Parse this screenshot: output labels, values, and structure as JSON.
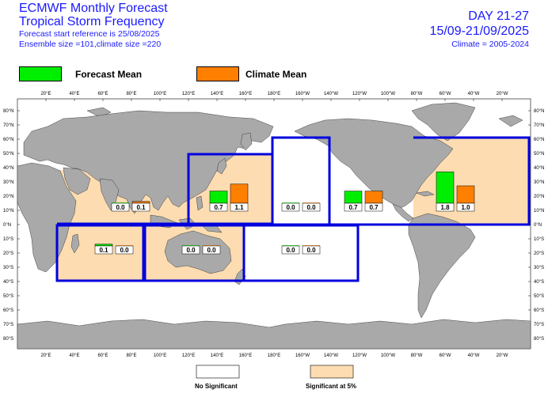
{
  "header": {
    "title1": "ECMWF Monthly Forecast",
    "title2": "Tropical Storm Frequency",
    "forecast_start": "Forecast start reference is 25/08/2025",
    "ensemble": "Ensemble size =101,climate size =220",
    "day_range": "DAY 21-27",
    "date_range": "15/09-21/09/2025",
    "climate_period": "Climate = 2005-2024"
  },
  "legend": {
    "forecast_label": "Forecast Mean",
    "climate_label": "Climate Mean",
    "forecast_color": "#00ee00",
    "climate_color": "#ff7f00"
  },
  "bottom_legend": {
    "no_signif_label": "No Significant",
    "signif_label": "Significant at 5%",
    "signif_color": "#fcdcb0"
  },
  "map": {
    "lon_ticks_top": [
      "20°E",
      "40°E",
      "60°E",
      "80°E",
      "100°E",
      "120°E",
      "140°E",
      "160°E",
      "180°E",
      "160°W",
      "140°W",
      "120°W",
      "100°W",
      "80°W",
      "60°W",
      "40°W",
      "20°W"
    ],
    "lon_ticks_bottom": [
      "20°E",
      "40°E",
      "60°E",
      "80°E",
      "100°E",
      "120°E",
      "140°E",
      "160°E",
      "180°E",
      "160°W",
      "140°W",
      "120°W",
      "100°W",
      "80°W",
      "60°W",
      "40°W",
      "20°W"
    ],
    "lat_ticks": [
      "80°N",
      "70°N",
      "60°N",
      "50°N",
      "40°N",
      "30°N",
      "20°N",
      "10°N",
      "0°N",
      "10°S",
      "20°S",
      "30°S",
      "40°S",
      "50°S",
      "60°S",
      "70°S",
      "80°S"
    ],
    "land_color": "#a9a9a9",
    "ocean_color": "#ffffff",
    "border_color": "#0000dd",
    "regions": [
      {
        "id": "north-indian",
        "significant": true,
        "forecast": 0.0,
        "climate": 0.1,
        "forecast_label": "0.0",
        "climate_label": "0.1"
      },
      {
        "id": "western-north-pacific",
        "significant": true,
        "forecast": 0.7,
        "climate": 1.1,
        "forecast_label": "0.7",
        "climate_label": "1.1"
      },
      {
        "id": "central-north-pacific",
        "significant": false,
        "forecast": 0.0,
        "climate": 0.0,
        "forecast_label": "0.0",
        "climate_label": "0.0"
      },
      {
        "id": "eastern-north-pacific",
        "significant": false,
        "forecast": 0.7,
        "climate": 0.7,
        "forecast_label": "0.7",
        "climate_label": "0.7"
      },
      {
        "id": "atlantic",
        "significant": true,
        "forecast": 1.8,
        "climate": 1.0,
        "forecast_label": "1.8",
        "climate_label": "1.0"
      },
      {
        "id": "south-west-indian",
        "significant": true,
        "forecast": 0.1,
        "climate": 0.0,
        "forecast_label": "0.1",
        "climate_label": "0.0"
      },
      {
        "id": "australian",
        "significant": true,
        "forecast": 0.0,
        "climate": 0.0,
        "forecast_label": "0.0",
        "climate_label": "0.0"
      },
      {
        "id": "south-pacific",
        "significant": false,
        "forecast": 0.0,
        "climate": 0.0,
        "forecast_label": "0.0",
        "climate_label": "0.0"
      }
    ]
  }
}
